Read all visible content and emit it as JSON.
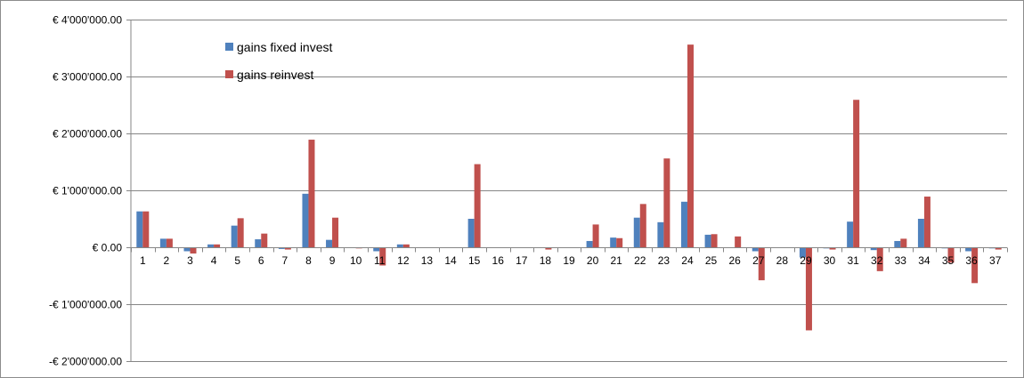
{
  "chart_data": {
    "type": "bar",
    "categories": [
      "1",
      "2",
      "3",
      "4",
      "5",
      "6",
      "7",
      "8",
      "9",
      "10",
      "11",
      "12",
      "13",
      "14",
      "15",
      "16",
      "17",
      "18",
      "19",
      "20",
      "21",
      "22",
      "23",
      "24",
      "25",
      "26",
      "27",
      "28",
      "29",
      "30",
      "31",
      "32",
      "33",
      "34",
      "35",
      "36",
      "37"
    ],
    "series": [
      {
        "name": "gains fixed invest",
        "color": "#4f81bd",
        "values": [
          630000,
          150000,
          -70000,
          50000,
          380000,
          140000,
          -30000,
          940000,
          130000,
          0,
          -70000,
          50000,
          0,
          0,
          500000,
          0,
          0,
          0,
          0,
          110000,
          170000,
          520000,
          440000,
          800000,
          220000,
          0,
          -70000,
          0,
          -180000,
          -20000,
          450000,
          -50000,
          110000,
          500000,
          -20000,
          -70000,
          -20000
        ]
      },
      {
        "name": "gains reinvest",
        "color": "#c0504d",
        "values": [
          630000,
          150000,
          -110000,
          50000,
          510000,
          240000,
          -40000,
          1890000,
          520000,
          -20000,
          -320000,
          50000,
          0,
          -10000,
          1460000,
          0,
          0,
          -40000,
          0,
          400000,
          160000,
          760000,
          1560000,
          3560000,
          230000,
          190000,
          -580000,
          -10000,
          -1460000,
          -40000,
          2590000,
          -420000,
          150000,
          890000,
          -270000,
          -630000,
          -40000
        ]
      }
    ],
    "y_ticks": [
      {
        "value": 4000000,
        "label": "€ 4'000'000.00"
      },
      {
        "value": 3000000,
        "label": "€ 3'000'000.00"
      },
      {
        "value": 2000000,
        "label": "€ 2'000'000.00"
      },
      {
        "value": 1000000,
        "label": "€ 1'000'000.00"
      },
      {
        "value": 0,
        "label": "€ 0.00"
      },
      {
        "value": -1000000,
        "label": "-€ 1'000'000.00"
      },
      {
        "value": -2000000,
        "label": "-€ 2'000'000.00"
      }
    ],
    "ylim": [
      -2000000,
      4000000
    ],
    "grid": true,
    "legend_position": "top-left inside plot",
    "title": "",
    "xlabel": "",
    "ylabel": ""
  }
}
